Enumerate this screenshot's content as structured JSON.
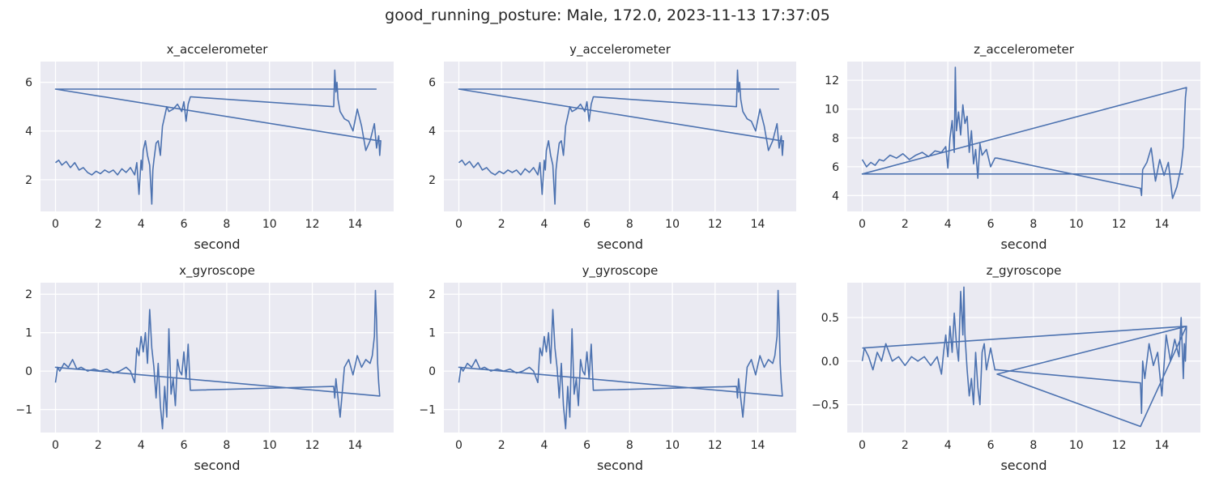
{
  "suptitle": "good_running_posture: Male, 172.0, 2023-11-13 17:37:05",
  "style": {
    "facecolor": "#eaeaf2",
    "gridcolor": "#ffffff",
    "linecolor": "#4c72b0"
  },
  "chart_data": [
    {
      "type": "line",
      "title": "x_accelerometer",
      "xlabel": "second",
      "ylabel": "",
      "xlim": [
        -0.7,
        15.8
      ],
      "ylim": [
        0.7,
        6.85
      ],
      "xticks": [
        0,
        2,
        4,
        6,
        8,
        10,
        12,
        14
      ],
      "yticks": [
        2,
        4,
        6
      ],
      "ytick_labels": [
        "2",
        "4",
        "6"
      ],
      "grid": true,
      "x": [
        0.0,
        0.15,
        0.3,
        0.5,
        0.7,
        0.9,
        1.1,
        1.3,
        1.5,
        1.7,
        1.9,
        2.1,
        2.3,
        2.5,
        2.7,
        2.9,
        3.1,
        3.3,
        3.5,
        3.7,
        3.8,
        3.9,
        4.0,
        4.05,
        4.1,
        4.2,
        4.3,
        4.4,
        4.5,
        4.55,
        4.6,
        4.7,
        4.8,
        4.9,
        5.0,
        5.1,
        5.2,
        5.3,
        5.5,
        5.7,
        5.9,
        6.0,
        6.1,
        6.2,
        6.3,
        6.35,
        13.0,
        13.05,
        13.1,
        13.15,
        13.2,
        13.3,
        13.5,
        13.7,
        13.9,
        14.1,
        14.3,
        14.5,
        14.7,
        14.9,
        15.0,
        15.1,
        15.15,
        15.2,
        15.1,
        0.0,
        15.0
      ],
      "y": [
        2.7,
        2.8,
        2.6,
        2.75,
        2.5,
        2.7,
        2.4,
        2.5,
        2.3,
        2.2,
        2.35,
        2.25,
        2.4,
        2.3,
        2.4,
        2.2,
        2.45,
        2.3,
        2.5,
        2.2,
        2.7,
        1.4,
        2.8,
        2.4,
        3.2,
        3.6,
        3.0,
        2.6,
        1.0,
        2.4,
        2.8,
        3.5,
        3.6,
        3.0,
        4.2,
        4.6,
        5.0,
        4.8,
        4.9,
        5.1,
        4.8,
        5.2,
        4.4,
        5.1,
        5.4,
        5.4,
        5.0,
        6.5,
        5.6,
        6.0,
        5.3,
        4.8,
        4.5,
        4.4,
        4.0,
        4.9,
        4.2,
        3.2,
        3.6,
        4.3,
        3.3,
        3.8,
        3.0,
        3.6,
        3.6,
        5.72,
        5.72
      ]
    },
    {
      "type": "line",
      "title": "y_accelerometer",
      "xlabel": "second",
      "ylabel": "",
      "xlim": [
        -0.7,
        15.8
      ],
      "ylim": [
        0.7,
        6.85
      ],
      "xticks": [
        0,
        2,
        4,
        6,
        8,
        10,
        12,
        14
      ],
      "yticks": [
        2,
        4,
        6
      ],
      "ytick_labels": [
        "2",
        "4",
        "6"
      ],
      "grid": true,
      "x": [
        0.0,
        0.15,
        0.3,
        0.5,
        0.7,
        0.9,
        1.1,
        1.3,
        1.5,
        1.7,
        1.9,
        2.1,
        2.3,
        2.5,
        2.7,
        2.9,
        3.1,
        3.3,
        3.5,
        3.7,
        3.8,
        3.9,
        4.0,
        4.05,
        4.1,
        4.2,
        4.3,
        4.4,
        4.5,
        4.55,
        4.6,
        4.7,
        4.8,
        4.9,
        5.0,
        5.1,
        5.2,
        5.3,
        5.5,
        5.7,
        5.9,
        6.0,
        6.1,
        6.2,
        6.3,
        6.35,
        13.0,
        13.05,
        13.1,
        13.15,
        13.2,
        13.3,
        13.5,
        13.7,
        13.9,
        14.1,
        14.3,
        14.5,
        14.7,
        14.9,
        15.0,
        15.1,
        15.15,
        15.2,
        15.1,
        0.0,
        15.0
      ],
      "y": [
        2.7,
        2.8,
        2.6,
        2.75,
        2.5,
        2.7,
        2.4,
        2.5,
        2.3,
        2.2,
        2.35,
        2.25,
        2.4,
        2.3,
        2.4,
        2.2,
        2.45,
        2.3,
        2.5,
        2.2,
        2.7,
        1.4,
        2.8,
        2.4,
        3.2,
        3.6,
        3.0,
        2.6,
        1.0,
        2.4,
        2.8,
        3.5,
        3.6,
        3.0,
        4.2,
        4.6,
        5.0,
        4.8,
        4.9,
        5.1,
        4.8,
        5.2,
        4.4,
        5.1,
        5.4,
        5.4,
        5.0,
        6.5,
        5.6,
        6.0,
        5.3,
        4.8,
        4.5,
        4.4,
        4.0,
        4.9,
        4.2,
        3.2,
        3.6,
        4.3,
        3.3,
        3.8,
        3.0,
        3.6,
        3.6,
        5.72,
        5.72
      ]
    },
    {
      "type": "line",
      "title": "z_accelerometer",
      "xlabel": "second",
      "ylabel": "",
      "xlim": [
        -0.7,
        15.8
      ],
      "ylim": [
        2.9,
        13.3
      ],
      "xticks": [
        0,
        2,
        4,
        6,
        8,
        10,
        12,
        14
      ],
      "yticks": [
        4,
        6,
        8,
        10,
        12
      ],
      "ytick_labels": [
        "4",
        "6",
        "8",
        "10",
        "12"
      ],
      "grid": true,
      "x": [
        0.0,
        0.2,
        0.4,
        0.6,
        0.8,
        1.0,
        1.3,
        1.6,
        1.9,
        2.2,
        2.5,
        2.8,
        3.1,
        3.4,
        3.7,
        3.9,
        4.0,
        4.1,
        4.2,
        4.3,
        4.35,
        4.4,
        4.5,
        4.6,
        4.7,
        4.8,
        4.9,
        5.0,
        5.1,
        5.2,
        5.3,
        5.4,
        5.5,
        5.6,
        5.8,
        6.0,
        6.2,
        6.3,
        13.0,
        13.05,
        13.1,
        13.3,
        13.5,
        13.7,
        13.9,
        14.1,
        14.3,
        14.5,
        14.7,
        14.9,
        15.0,
        15.1,
        15.15,
        0.0,
        15.0
      ],
      "y": [
        6.5,
        6.0,
        6.3,
        6.1,
        6.5,
        6.4,
        6.8,
        6.6,
        6.9,
        6.5,
        6.8,
        7.0,
        6.7,
        7.1,
        7.0,
        7.4,
        5.9,
        8.0,
        9.2,
        7.0,
        12.9,
        8.5,
        9.8,
        8.2,
        10.3,
        9.0,
        9.5,
        7.0,
        8.5,
        6.2,
        7.2,
        5.2,
        7.6,
        6.8,
        7.2,
        6.0,
        6.6,
        6.6,
        4.5,
        4.0,
        5.8,
        6.3,
        7.3,
        5.0,
        6.5,
        5.4,
        6.3,
        3.8,
        4.6,
        6.0,
        7.4,
        10.8,
        11.5,
        5.5,
        5.5
      ]
    },
    {
      "type": "line",
      "title": "x_gyroscope",
      "xlabel": "second",
      "ylabel": "",
      "xlim": [
        -0.7,
        15.8
      ],
      "ylim": [
        -1.6,
        2.3
      ],
      "xticks": [
        0,
        2,
        4,
        6,
        8,
        10,
        12,
        14
      ],
      "yticks": [
        -1,
        0,
        1,
        2
      ],
      "ytick_labels": [
        "−1",
        "0",
        "1",
        "2"
      ],
      "grid": true,
      "x": [
        0.0,
        0.1,
        0.2,
        0.4,
        0.6,
        0.8,
        1.0,
        1.2,
        1.5,
        1.8,
        2.1,
        2.4,
        2.7,
        3.0,
        3.3,
        3.5,
        3.7,
        3.8,
        3.9,
        4.0,
        4.1,
        4.2,
        4.3,
        4.4,
        4.5,
        4.6,
        4.7,
        4.8,
        4.9,
        5.0,
        5.1,
        5.2,
        5.3,
        5.4,
        5.5,
        5.6,
        5.7,
        5.8,
        5.9,
        6.0,
        6.1,
        6.2,
        6.3,
        13.0,
        13.05,
        13.1,
        13.3,
        13.5,
        13.7,
        13.9,
        14.1,
        14.3,
        14.5,
        14.7,
        14.8,
        14.9,
        14.95,
        15.0,
        15.05,
        15.1,
        15.15,
        0.0,
        15.15
      ],
      "y": [
        -0.3,
        0.1,
        0.0,
        0.2,
        0.1,
        0.3,
        0.05,
        0.1,
        0.0,
        0.05,
        0.0,
        0.05,
        -0.05,
        0.0,
        0.1,
        0.0,
        -0.3,
        0.6,
        0.4,
        0.9,
        0.5,
        1.0,
        0.2,
        1.6,
        0.6,
        0.1,
        -0.7,
        0.2,
        -0.9,
        -1.5,
        -0.4,
        -1.2,
        1.1,
        -0.6,
        -0.2,
        -0.9,
        0.3,
        0.0,
        -0.1,
        0.5,
        -0.2,
        0.7,
        -0.5,
        -0.4,
        -0.7,
        -0.2,
        -1.2,
        0.1,
        0.3,
        -0.1,
        0.4,
        0.1,
        0.3,
        0.2,
        0.4,
        0.9,
        2.1,
        1.3,
        0.2,
        -0.3,
        -0.65,
        0.1,
        -0.65
      ]
    },
    {
      "type": "line",
      "title": "y_gyroscope",
      "xlabel": "second",
      "ylabel": "",
      "xlim": [
        -0.7,
        15.8
      ],
      "ylim": [
        -1.6,
        2.3
      ],
      "xticks": [
        0,
        2,
        4,
        6,
        8,
        10,
        12,
        14
      ],
      "yticks": [
        -1,
        0,
        1,
        2
      ],
      "ytick_labels": [
        "−1",
        "0",
        "1",
        "2"
      ],
      "grid": true,
      "x": [
        0.0,
        0.1,
        0.2,
        0.4,
        0.6,
        0.8,
        1.0,
        1.2,
        1.5,
        1.8,
        2.1,
        2.4,
        2.7,
        3.0,
        3.3,
        3.5,
        3.7,
        3.8,
        3.9,
        4.0,
        4.1,
        4.2,
        4.3,
        4.4,
        4.5,
        4.6,
        4.7,
        4.8,
        4.9,
        5.0,
        5.1,
        5.2,
        5.3,
        5.4,
        5.5,
        5.6,
        5.7,
        5.8,
        5.9,
        6.0,
        6.1,
        6.2,
        6.3,
        13.0,
        13.05,
        13.1,
        13.3,
        13.5,
        13.7,
        13.9,
        14.1,
        14.3,
        14.5,
        14.7,
        14.8,
        14.9,
        14.95,
        15.0,
        15.05,
        15.1,
        15.15,
        0.0,
        15.15
      ],
      "y": [
        -0.3,
        0.1,
        0.0,
        0.2,
        0.1,
        0.3,
        0.05,
        0.1,
        0.0,
        0.05,
        0.0,
        0.05,
        -0.05,
        0.0,
        0.1,
        0.0,
        -0.3,
        0.6,
        0.4,
        0.9,
        0.5,
        1.0,
        0.2,
        1.6,
        0.6,
        0.1,
        -0.7,
        0.2,
        -0.9,
        -1.5,
        -0.4,
        -1.2,
        1.1,
        -0.6,
        -0.2,
        -0.9,
        0.3,
        0.0,
        -0.1,
        0.5,
        -0.2,
        0.7,
        -0.5,
        -0.4,
        -0.7,
        -0.2,
        -1.2,
        0.1,
        0.3,
        -0.1,
        0.4,
        0.1,
        0.3,
        0.2,
        0.4,
        0.9,
        2.1,
        1.3,
        0.2,
        -0.3,
        -0.65,
        0.1,
        -0.65
      ]
    },
    {
      "type": "line",
      "title": "z_gyroscope",
      "xlabel": "second",
      "ylabel": "",
      "xlim": [
        -0.7,
        15.8
      ],
      "ylim": [
        -0.82,
        0.9
      ],
      "xticks": [
        0,
        2,
        4,
        6,
        8,
        10,
        12,
        14
      ],
      "yticks": [
        -0.5,
        0.0,
        0.5
      ],
      "ytick_labels": [
        "−0.5",
        "0.0",
        "0.5"
      ],
      "grid": true,
      "x": [
        0.0,
        0.1,
        0.3,
        0.5,
        0.7,
        0.9,
        1.1,
        1.4,
        1.7,
        2.0,
        2.3,
        2.6,
        2.9,
        3.2,
        3.5,
        3.7,
        3.8,
        3.9,
        4.0,
        4.1,
        4.2,
        4.3,
        4.4,
        4.5,
        4.6,
        4.7,
        4.75,
        4.8,
        4.9,
        5.0,
        5.1,
        5.2,
        5.3,
        5.4,
        5.5,
        5.6,
        5.7,
        5.8,
        6.0,
        6.2,
        6.3,
        13.0,
        13.05,
        13.1,
        13.2,
        13.4,
        13.6,
        13.8,
        14.0,
        14.2,
        14.4,
        14.6,
        14.8,
        14.9,
        15.0,
        15.05,
        15.1,
        15.15,
        6.3,
        13.0,
        15.15,
        0.0
      ],
      "y": [
        0.0,
        0.15,
        0.05,
        -0.1,
        0.1,
        0.0,
        0.2,
        0.0,
        0.05,
        -0.05,
        0.05,
        0.0,
        0.05,
        -0.05,
        0.05,
        -0.15,
        0.1,
        0.3,
        0.05,
        0.4,
        0.1,
        0.55,
        0.2,
        0.0,
        0.8,
        0.3,
        0.85,
        0.3,
        -0.1,
        -0.4,
        -0.2,
        -0.5,
        0.1,
        -0.3,
        -0.5,
        0.1,
        0.2,
        -0.1,
        0.15,
        -0.1,
        -0.1,
        -0.25,
        -0.6,
        0.0,
        -0.2,
        0.2,
        -0.05,
        0.1,
        -0.4,
        0.3,
        0.0,
        0.25,
        0.05,
        0.5,
        -0.2,
        0.2,
        0.0,
        0.4,
        -0.15,
        -0.75,
        0.4,
        0.15
      ]
    }
  ]
}
